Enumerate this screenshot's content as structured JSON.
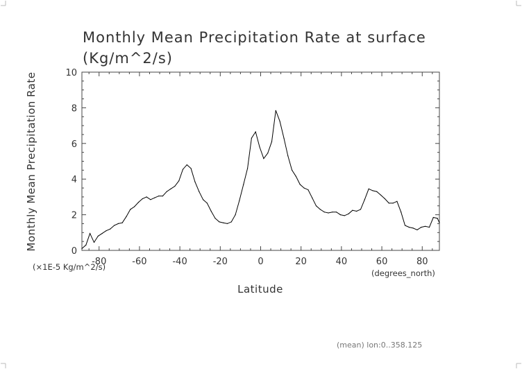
{
  "chart_data": {
    "type": "line",
    "title": "Monthly Mean Precipitation Rate at surface",
    "subtitle": "(Kg/m^2/s)",
    "xlabel": "Latitude",
    "ylabel": "Monthly Mean Precipitation Rate",
    "x_units": "(degrees_north)",
    "y_units": "(×1E-5 Kg/m^2/s)",
    "footnote": "(mean) lon:0..358.125",
    "xlim": [
      -88.5,
      88.5
    ],
    "ylim": [
      0,
      10
    ],
    "x_ticks": [
      -80,
      -60,
      -40,
      -20,
      0,
      20,
      40,
      60,
      80
    ],
    "x_tick_labels": [
      "-80",
      "-60",
      "-40",
      "-20",
      "0",
      "20",
      "40",
      "60",
      "80"
    ],
    "y_ticks": [
      0,
      2,
      4,
      6,
      8,
      10
    ],
    "y_tick_labels": [
      "0",
      "2",
      "4",
      "6",
      "8",
      "10"
    ],
    "grid": false,
    "series": [
      {
        "color": "#000000",
        "x": [
          -88.5,
          -86.5,
          -84.5,
          -82.5,
          -80.5,
          -78.5,
          -76.5,
          -74.5,
          -72.5,
          -70.5,
          -68.5,
          -66.5,
          -64.5,
          -62.5,
          -60.5,
          -58.5,
          -56.5,
          -54.5,
          -52.5,
          -50.5,
          -48.5,
          -46.5,
          -44.5,
          -42.5,
          -40.5,
          -38.5,
          -36.5,
          -34.5,
          -32.5,
          -30.5,
          -28.5,
          -26.5,
          -24.5,
          -22.5,
          -20.5,
          -18.5,
          -16.5,
          -14.5,
          -12.5,
          -10.5,
          -8.5,
          -6.5,
          -4.5,
          -2.5,
          -0.5,
          1.5,
          3.5,
          5.5,
          7.5,
          9.5,
          11.5,
          13.5,
          15.5,
          17.5,
          19.5,
          21.5,
          23.5,
          25.5,
          27.5,
          29.5,
          31.5,
          33.5,
          35.5,
          37.5,
          39.5,
          41.5,
          43.5,
          45.5,
          47.5,
          49.5,
          51.5,
          53.5,
          55.5,
          57.5,
          59.5,
          61.5,
          63.5,
          65.5,
          67.5,
          69.5,
          71.5,
          73.5,
          75.5,
          77.5,
          79.5,
          81.5,
          83.5,
          85.5,
          87.5,
          88.5
        ],
        "values": [
          0.1,
          0.3,
          0.95,
          0.45,
          0.8,
          0.95,
          1.1,
          1.2,
          1.4,
          1.5,
          1.55,
          1.9,
          2.3,
          2.45,
          2.7,
          2.9,
          3.0,
          2.85,
          2.95,
          3.05,
          3.05,
          3.3,
          3.45,
          3.6,
          3.9,
          4.55,
          4.8,
          4.6,
          3.85,
          3.3,
          2.85,
          2.65,
          2.2,
          1.8,
          1.6,
          1.55,
          1.5,
          1.6,
          2.0,
          2.8,
          3.7,
          4.6,
          6.3,
          6.65,
          5.8,
          5.15,
          5.45,
          6.1,
          7.85,
          7.25,
          6.3,
          5.3,
          4.5,
          4.15,
          3.7,
          3.5,
          3.4,
          2.95,
          2.5,
          2.3,
          2.15,
          2.1,
          2.15,
          2.15,
          2.0,
          1.95,
          2.05,
          2.25,
          2.2,
          2.3,
          2.85,
          3.45,
          3.35,
          3.3,
          3.1,
          2.9,
          2.65,
          2.65,
          2.75,
          2.15,
          1.4,
          1.3,
          1.25,
          1.15,
          1.3,
          1.35,
          1.3,
          1.85,
          1.8,
          1.55
        ]
      }
    ]
  }
}
